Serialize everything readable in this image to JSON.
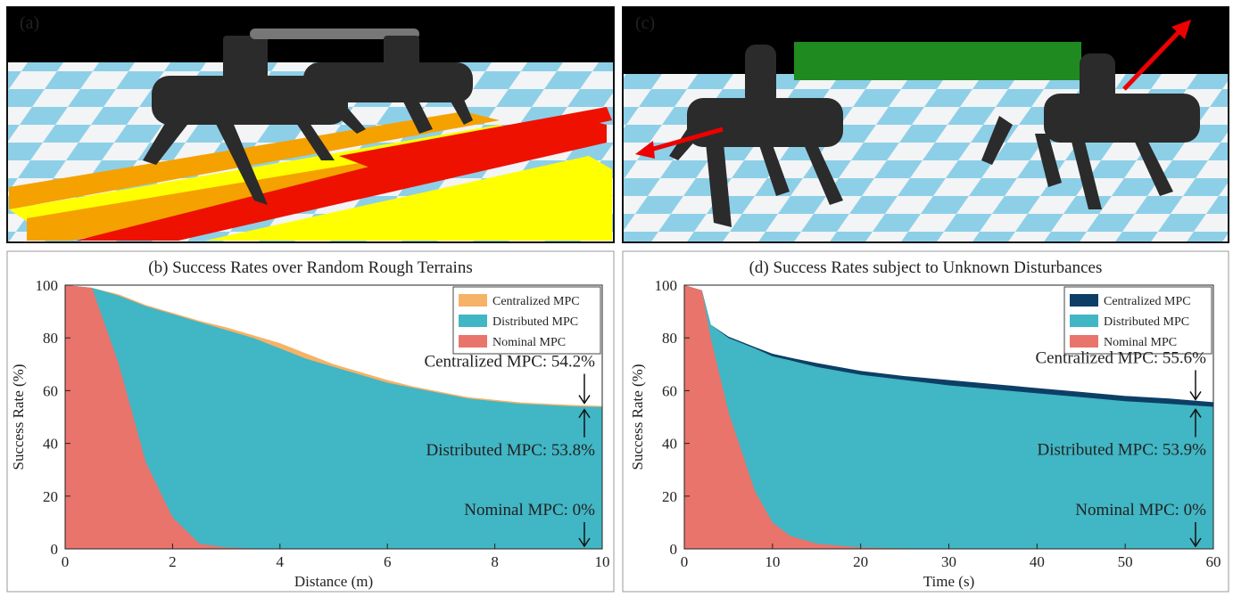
{
  "images": [
    {
      "label": "(a)"
    },
    {
      "label": "(c)"
    }
  ],
  "chart_data": [
    {
      "type": "area",
      "title": "(b)  Success Rates over Random Rough Terrains",
      "x_label": "Distance (m)",
      "y_label": "Success Rate (%)",
      "x": [
        0,
        0.5,
        1,
        1.5,
        2,
        2.5,
        3,
        3.5,
        4,
        4.5,
        5,
        5.5,
        6,
        6.5,
        7,
        7.5,
        8,
        8.5,
        9,
        9.5,
        10
      ],
      "series": [
        {
          "name": "Centralized MPC",
          "color": "#f6b266",
          "values": [
            100,
            99,
            96.5,
            92.5,
            89.5,
            86.5,
            84,
            81,
            78,
            74,
            70,
            67,
            64,
            61.5,
            59.5,
            57.5,
            56.5,
            55.5,
            55,
            54.5,
            54.2
          ]
        },
        {
          "name": "Distributed MPC",
          "color": "#41b6c4",
          "values": [
            100,
            99,
            96,
            92,
            89,
            86,
            83,
            80,
            76,
            72,
            69,
            66,
            63,
            61,
            59,
            57,
            56,
            55,
            54.5,
            54,
            53.8
          ]
        },
        {
          "name": "Nominal MPC",
          "color": "#e8746c",
          "values": [
            100,
            99,
            70,
            33,
            12,
            2,
            0.5,
            0.2,
            0,
            0,
            0,
            0,
            0,
            0,
            0,
            0,
            0,
            0,
            0,
            0,
            0
          ]
        }
      ],
      "annotations": [
        "Centralized MPC: 54.2%",
        "Distributed MPC: 53.8%",
        "Nominal MPC: 0%"
      ],
      "xlim": [
        0,
        10
      ],
      "xticks": [
        0,
        2,
        4,
        6,
        8,
        10
      ],
      "ylim": [
        0,
        100
      ],
      "yticks": [
        0,
        20,
        40,
        60,
        80,
        100
      ],
      "legend": "upper right",
      "grid": false
    },
    {
      "type": "area",
      "title": "(d)  Success Rates subject to Unknown Disturbances",
      "x_label": "Time (s)",
      "y_label": "Success Rate (%)",
      "x": [
        0,
        2,
        3,
        5,
        8,
        10,
        12,
        15,
        20,
        25,
        30,
        35,
        40,
        45,
        50,
        55,
        60
      ],
      "series": [
        {
          "name": "Centralized MPC",
          "color": "#0d3f66",
          "values": [
            100,
            98,
            85,
            80.5,
            76.5,
            74,
            72.5,
            70.5,
            67.5,
            65.5,
            64,
            62.5,
            61,
            59.5,
            58,
            57,
            55.6
          ]
        },
        {
          "name": "Distributed MPC",
          "color": "#41b6c4",
          "values": [
            100,
            98,
            85,
            80,
            76,
            73,
            71.5,
            69,
            66,
            64,
            62,
            60.5,
            59,
            57.5,
            56,
            55,
            53.9
          ]
        },
        {
          "name": "Nominal MPC",
          "color": "#e8746c",
          "values": [
            100,
            98,
            80,
            52,
            22,
            10,
            5,
            2,
            0.5,
            0.2,
            0,
            0,
            0,
            0,
            0,
            0,
            0
          ]
        }
      ],
      "annotations": [
        "Centralized MPC: 55.6%",
        "Distributed MPC: 53.9%",
        "Nominal MPC: 0%"
      ],
      "xlim": [
        0,
        60
      ],
      "xticks": [
        0,
        10,
        20,
        30,
        40,
        50,
        60
      ],
      "ylim": [
        0,
        100
      ],
      "yticks": [
        0,
        20,
        40,
        60,
        80,
        100
      ],
      "legend": "upper right",
      "grid": false
    }
  ]
}
